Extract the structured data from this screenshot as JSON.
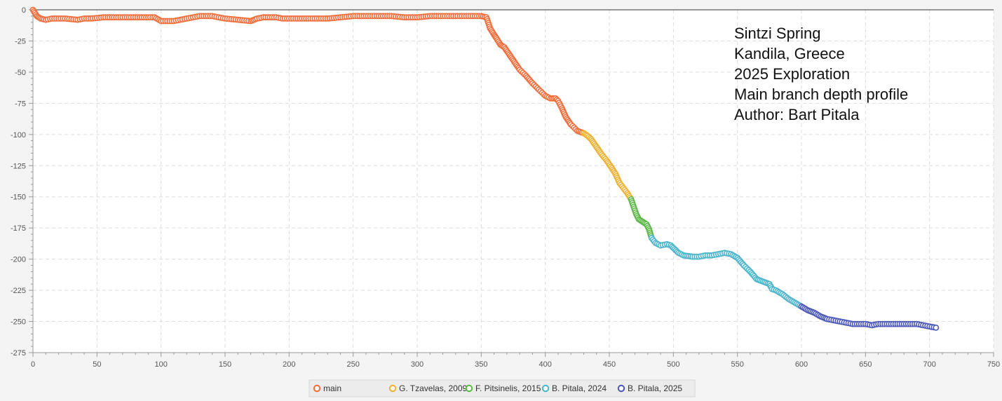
{
  "chart_data": {
    "type": "scatter",
    "xlim": [
      0,
      750
    ],
    "ylim": [
      -275,
      0
    ],
    "x_ticks": [
      0,
      50,
      100,
      150,
      200,
      250,
      300,
      350,
      400,
      450,
      500,
      550,
      600,
      650,
      700,
      750
    ],
    "y_ticks": [
      0,
      -25,
      -50,
      -75,
      -100,
      -125,
      -150,
      -175,
      -200,
      -225,
      -250,
      -275
    ],
    "grid": true,
    "legend_position": "bottom",
    "annotation": [
      "Sintzi Spring",
      "Kandila, Greece",
      "2025 Exploration",
      "Main branch depth profile",
      "Author: Bart Pitala"
    ],
    "series": [
      {
        "name": "main",
        "color": "#f26c3a",
        "x": [
          0,
          3,
          6,
          10,
          15,
          25,
          35,
          40,
          45,
          55,
          65,
          75,
          85,
          95,
          100,
          110,
          115,
          120,
          125,
          130,
          140,
          150,
          160,
          170,
          175,
          180,
          190,
          195,
          200,
          210,
          220,
          230,
          240,
          250,
          260,
          270,
          280,
          290,
          300,
          310,
          320,
          330,
          340,
          350,
          354,
          357,
          360,
          362,
          365,
          368,
          372,
          376,
          380,
          385,
          390,
          395,
          400,
          404,
          408,
          410,
          413,
          416,
          420,
          425,
          430
        ],
        "y": [
          0,
          -5,
          -7,
          -8,
          -7,
          -7,
          -8,
          -7,
          -7,
          -6,
          -6,
          -6,
          -6,
          -6,
          -9,
          -9,
          -8,
          -7,
          -6,
          -5,
          -5,
          -7,
          -8,
          -9,
          -7,
          -6,
          -6,
          -7,
          -7,
          -7,
          -7,
          -7,
          -6,
          -5,
          -5,
          -5,
          -5,
          -6,
          -6,
          -5,
          -5,
          -5,
          -5,
          -5,
          -6,
          -15,
          -20,
          -23,
          -28,
          -30,
          -36,
          -42,
          -48,
          -53,
          -59,
          -64,
          -69,
          -71,
          -71,
          -73,
          -79,
          -86,
          -92,
          -97,
          -99
        ]
      },
      {
        "name": "G. Tzavelas, 2009",
        "color": "#f0b030",
        "x": [
          430,
          433,
          436,
          440,
          444,
          448,
          452,
          455,
          458,
          461,
          464,
          467
        ],
        "y": [
          -99,
          -101,
          -104,
          -110,
          -116,
          -121,
          -127,
          -132,
          -139,
          -143,
          -147,
          -152
        ]
      },
      {
        "name": "F. Pitsinelis, 2015",
        "color": "#5ab845",
        "x": [
          467,
          469,
          471,
          473,
          476,
          479,
          481,
          483
        ],
        "y": [
          -152,
          -158,
          -164,
          -168,
          -170,
          -172,
          -176,
          -183
        ]
      },
      {
        "name": "B. Pitala, 2024",
        "color": "#4ab4cc",
        "x": [
          483,
          486,
          490,
          495,
          498,
          501,
          504,
          508,
          515,
          520,
          525,
          530,
          535,
          540,
          545,
          550,
          555,
          560,
          565,
          570,
          575,
          577,
          580,
          585,
          590,
          595,
          600
        ],
        "y": [
          -183,
          -187,
          -189,
          -188,
          -189,
          -192,
          -195,
          -197,
          -198,
          -198,
          -197,
          -197,
          -196,
          -195,
          -196,
          -199,
          -205,
          -210,
          -216,
          -218,
          -220,
          -224,
          -225,
          -228,
          -232,
          -235,
          -238
        ]
      },
      {
        "name": "B. Pitala, 2025",
        "color": "#4a56b8",
        "x": [
          600,
          605,
          610,
          615,
          620,
          625,
          630,
          635,
          640,
          645,
          650,
          655,
          660,
          665,
          670,
          675,
          680,
          685,
          690,
          695,
          700,
          705
        ],
        "y": [
          -238,
          -241,
          -243,
          -246,
          -248,
          -249,
          -250,
          -251,
          -252,
          -252,
          -252,
          -253,
          -252,
          -252,
          -252,
          -252,
          -252,
          -252,
          -252,
          -253,
          -254,
          -255
        ]
      }
    ]
  }
}
